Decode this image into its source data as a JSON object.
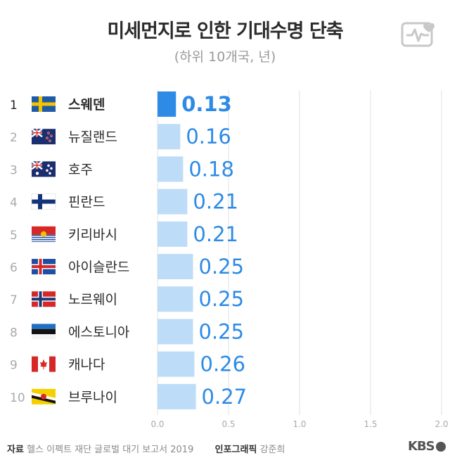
{
  "header": {
    "title": "미세먼지로 인한 기대수명 단축",
    "subtitle": "(하위 10개국, 년)"
  },
  "icon": "health-monitor-icon",
  "colors": {
    "highlight_bar": "#2d8be6",
    "bar": "#bcdcf7",
    "value_text": "#2d8be6",
    "grid": "#e2e2e2"
  },
  "chart_data": {
    "type": "bar",
    "orientation": "horizontal",
    "ranks": [
      "1",
      "2",
      "3",
      "4",
      "5",
      "6",
      "7",
      "8",
      "9",
      "10"
    ],
    "categories": [
      "스웨덴",
      "뉴질랜드",
      "호주",
      "핀란드",
      "키리바시",
      "아이슬란드",
      "노르웨이",
      "에스토니아",
      "캐나다",
      "브루나이"
    ],
    "flags": [
      "flag-sweden-icon",
      "flag-new-zealand-icon",
      "flag-australia-icon",
      "flag-finland-icon",
      "flag-kiribati-icon",
      "flag-iceland-icon",
      "flag-norway-icon",
      "flag-estonia-icon",
      "flag-canada-icon",
      "flag-brunei-icon"
    ],
    "values": [
      0.13,
      0.16,
      0.18,
      0.21,
      0.21,
      0.25,
      0.25,
      0.25,
      0.26,
      0.27
    ],
    "value_labels": [
      "0.13",
      "0.16",
      "0.18",
      "0.21",
      "0.21",
      "0.25",
      "0.25",
      "0.25",
      "0.26",
      "0.27"
    ],
    "xlim": [
      0,
      2.0
    ],
    "xticks": [
      "0.0",
      "0.5",
      "1.0",
      "1.5",
      "2.0"
    ],
    "highlight_index": 0,
    "grid": true
  },
  "footer": {
    "source_label": "자료",
    "source_text": "헬스 이펙트 재단 글로벌 대기 보고서 2019",
    "credit_label": "인포그래픽",
    "credit_name": "강준희",
    "brand": "KBS"
  }
}
